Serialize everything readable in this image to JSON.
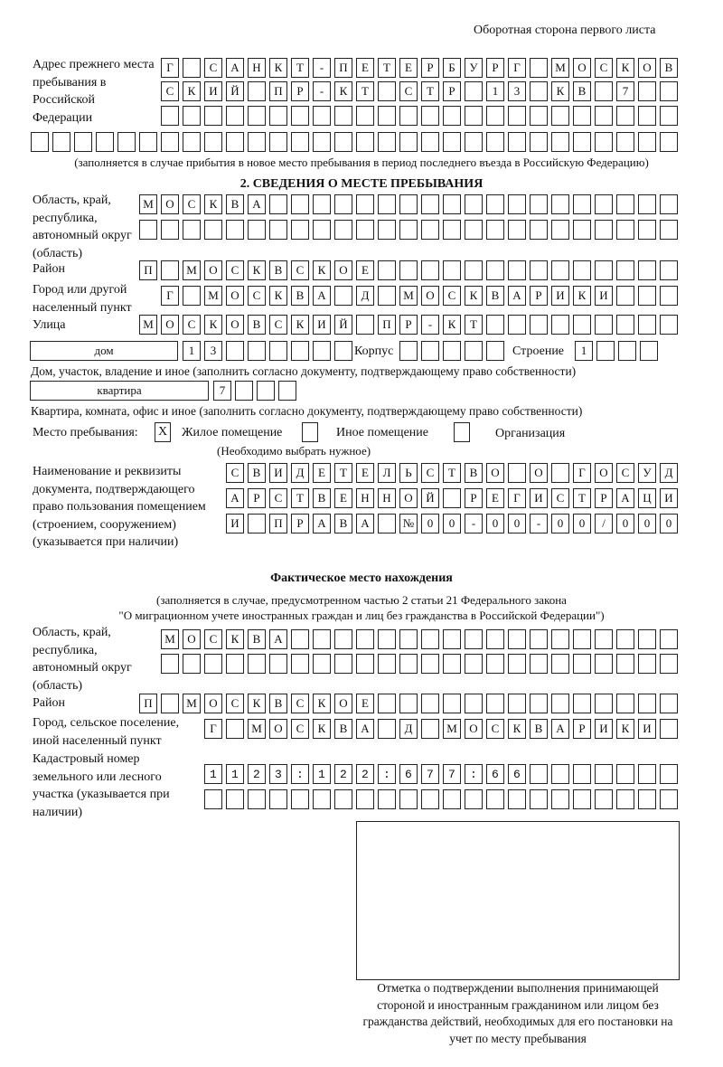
{
  "header": "Оборотная сторона первого листа",
  "prev_address": {
    "label": "Адрес прежнего места пребывания в Российской Федерации",
    "rows": [
      "Г САНКТ-ПЕТЕРБУРГ МОСКОВ",
      "СКИЙ ПР-КТ СТР 13 КВ 7",
      "",
      ""
    ],
    "note": "(заполняется в случае прибытия в новое место пребывания в период последнего въезда в Российскую Федерацию)"
  },
  "section2": {
    "title": "2. СВЕДЕНИЯ О МЕСТЕ ПРЕБЫВАНИЯ",
    "region_label": "Область, край, республика, автономный округ (область)",
    "region_rows": [
      "МОСКВА",
      ""
    ],
    "district_label": "Район",
    "district": "П МОСКВСКОЕ",
    "city_label": "Город или другой населенный пункт",
    "city": "Г МОСКВА Д МОСКВАРИКИ",
    "street_label": "Улица",
    "street": "МОСКОВСКИЙ ПР-КТ",
    "house_type": "дом",
    "house": "13",
    "korpus_label": "Корпус",
    "korpus": "",
    "building_label": "Строение",
    "building": "1",
    "house_note": "Дом, участок, владение и иное (заполнить согласно документу, подтверждающему право собственности)",
    "flat_type": "квартира",
    "flat": "7",
    "flat_note": "Квартира, комната, офис и иное (заполнить согласно документу, подтверждающему право собственности)",
    "stay_label": "Место пребывания:",
    "options": [
      {
        "label": "Жилое помещение",
        "checked": true,
        "mark": "X"
      },
      {
        "label": "Иное помещение",
        "checked": false,
        "mark": ""
      },
      {
        "label": "Организация",
        "checked": false,
        "mark": ""
      }
    ],
    "options_note": "(Необходимо выбрать нужное)",
    "doc_label": "Наименование и реквизиты документа, подтверждающего право пользования помещением (строением, сооружением) (указывается при наличии)",
    "doc_rows": [
      "СВИДЕТЕЛЬСТВО О ГОСУД",
      "АРСТВЕННОЙ РЕГИСТРАЦИ",
      "И ПРАВА №00-00-00/000"
    ]
  },
  "actual": {
    "title": "Фактическое место нахождения",
    "note1": "(заполняется в случае, предусмотренном частью 2 статьи 21 Федерального закона",
    "note2": "\"О миграционном учете иностранных граждан и лиц без гражданства в Российской Федерации\")",
    "region_label": "Область, край, республика, автономный округ (область)",
    "region_rows": [
      "МОСКВА",
      ""
    ],
    "district_label": "Район",
    "district": "П МОСКВСКОЕ",
    "city_label": "Город, сельское поселение, иной населенный пункт",
    "city": "Г МОСКВА Д МОСКВАРИКИ",
    "cadastre_label": "Кадастровый номер земельного или лесного участка (указывается при наличии)",
    "cadastre_rows": [
      "1123:122:677:66",
      ""
    ]
  },
  "stamp_note": "Отметка о подтверждении выполнения принимающей стороной и иностранным гражданином или лицом без гражданства действий, необходимых для его постановки на учет по месту пребывания"
}
